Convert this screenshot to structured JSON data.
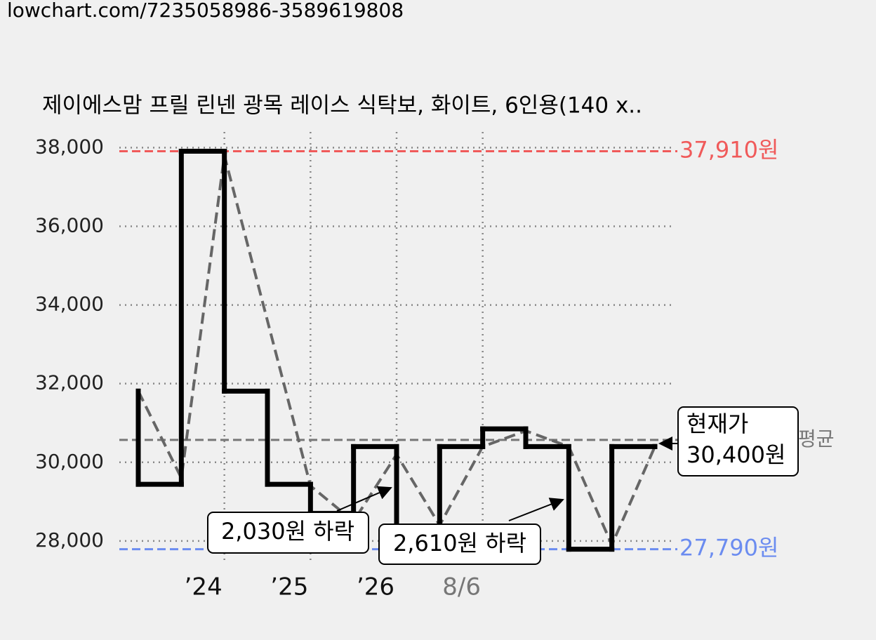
{
  "url": "lowchart.com/7235058986-3589619808",
  "chart_data": {
    "type": "step",
    "title": "제이에스맘 프릴 린넨 광목 레이스 식탁보, 화이트, 6인용(140 x..",
    "categories": [
      null,
      null,
      "’24",
      null,
      "’25",
      null,
      "’26",
      null,
      "8/6",
      null,
      null,
      null,
      null
    ],
    "xlim": [
      0,
      12
    ],
    "series": [
      {
        "style": "step",
        "color": "#000000",
        "x": [
          0,
          0,
          1,
          2,
          3,
          4,
          5,
          6,
          7,
          8,
          9,
          10,
          11,
          12
        ],
        "values": [
          31810,
          29440,
          37910,
          31810,
          29440,
          28700,
          30400,
          28370,
          30400,
          30850,
          30400,
          27790,
          30400,
          30400
        ]
      },
      {
        "style": "dashed",
        "color": "#666666",
        "x": [
          0,
          1,
          2,
          3,
          4,
          5,
          6,
          7,
          8,
          9,
          10,
          11,
          12
        ],
        "values": [
          31810,
          29600,
          37800,
          33600,
          29400,
          28500,
          30200,
          28400,
          30400,
          30800,
          30400,
          27900,
          30400
        ]
      }
    ],
    "ylim": [
      27480,
      38400
    ],
    "yticks": [
      {
        "value": 28000,
        "label": "28,000"
      },
      {
        "value": 30000,
        "label": "30,000"
      },
      {
        "value": 32000,
        "label": "32,000"
      },
      {
        "value": 34000,
        "label": "34,000"
      },
      {
        "value": 36000,
        "label": "36,000"
      },
      {
        "value": 38000,
        "label": "38,000"
      }
    ],
    "grid": true,
    "reference_lines": [
      {
        "value": 37910,
        "label": "37,910원",
        "color": "#f05a5a"
      },
      {
        "value": 27790,
        "label": "27,790원",
        "color": "#6b8cf0"
      },
      {
        "value": 30570,
        "label": "평균",
        "color": "#777777"
      }
    ],
    "annotations": {
      "current": [
        "현재가",
        "30,400원"
      ],
      "drop1": "2,030원 하락",
      "drop2": "2,610원 하락"
    }
  }
}
